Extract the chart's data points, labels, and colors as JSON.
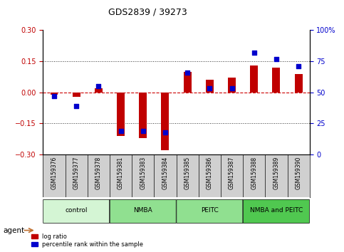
{
  "title": "GDS2839 / 39273",
  "samples": [
    "GSM159376",
    "GSM159377",
    "GSM159378",
    "GSM159381",
    "GSM159383",
    "GSM159384",
    "GSM159385",
    "GSM159386",
    "GSM159387",
    "GSM159388",
    "GSM159389",
    "GSM159390"
  ],
  "log_ratio": [
    -0.01,
    -0.02,
    0.02,
    -0.21,
    -0.22,
    -0.28,
    0.1,
    0.06,
    0.07,
    0.13,
    0.12,
    0.09
  ],
  "percentile_rank": [
    47,
    39,
    55,
    19,
    19,
    18,
    66,
    53,
    53,
    82,
    77,
    71
  ],
  "ylim_left": [
    -0.3,
    0.3
  ],
  "ylim_right": [
    0,
    100
  ],
  "yticks_left": [
    -0.3,
    -0.15,
    0,
    0.15,
    0.3
  ],
  "yticks_right": [
    0,
    25,
    50,
    75,
    100
  ],
  "ytick_labels_right": [
    "0",
    "25",
    "50",
    "75",
    "100%"
  ],
  "groups": [
    {
      "label": "control",
      "start": 0,
      "end": 3,
      "color": "#c8f0c8"
    },
    {
      "label": "NMBA",
      "start": 3,
      "end": 6,
      "color": "#90e090"
    },
    {
      "label": "PEITC",
      "start": 6,
      "end": 9,
      "color": "#90e090"
    },
    {
      "label": "NMBA and PEITC",
      "start": 9,
      "end": 12,
      "color": "#50c050"
    }
  ],
  "agent_label": "agent",
  "bar_color_red": "#c00000",
  "dot_color_blue": "#0000cc",
  "zero_line_color": "#cc0000",
  "dotted_line_color": "#333333",
  "legend_red_label": "log ratio",
  "legend_blue_label": "percentile rank within the sample",
  "bg_color": "#ffffff",
  "plot_bg_color": "#ffffff",
  "tick_label_area_color": "#d0d0d0"
}
